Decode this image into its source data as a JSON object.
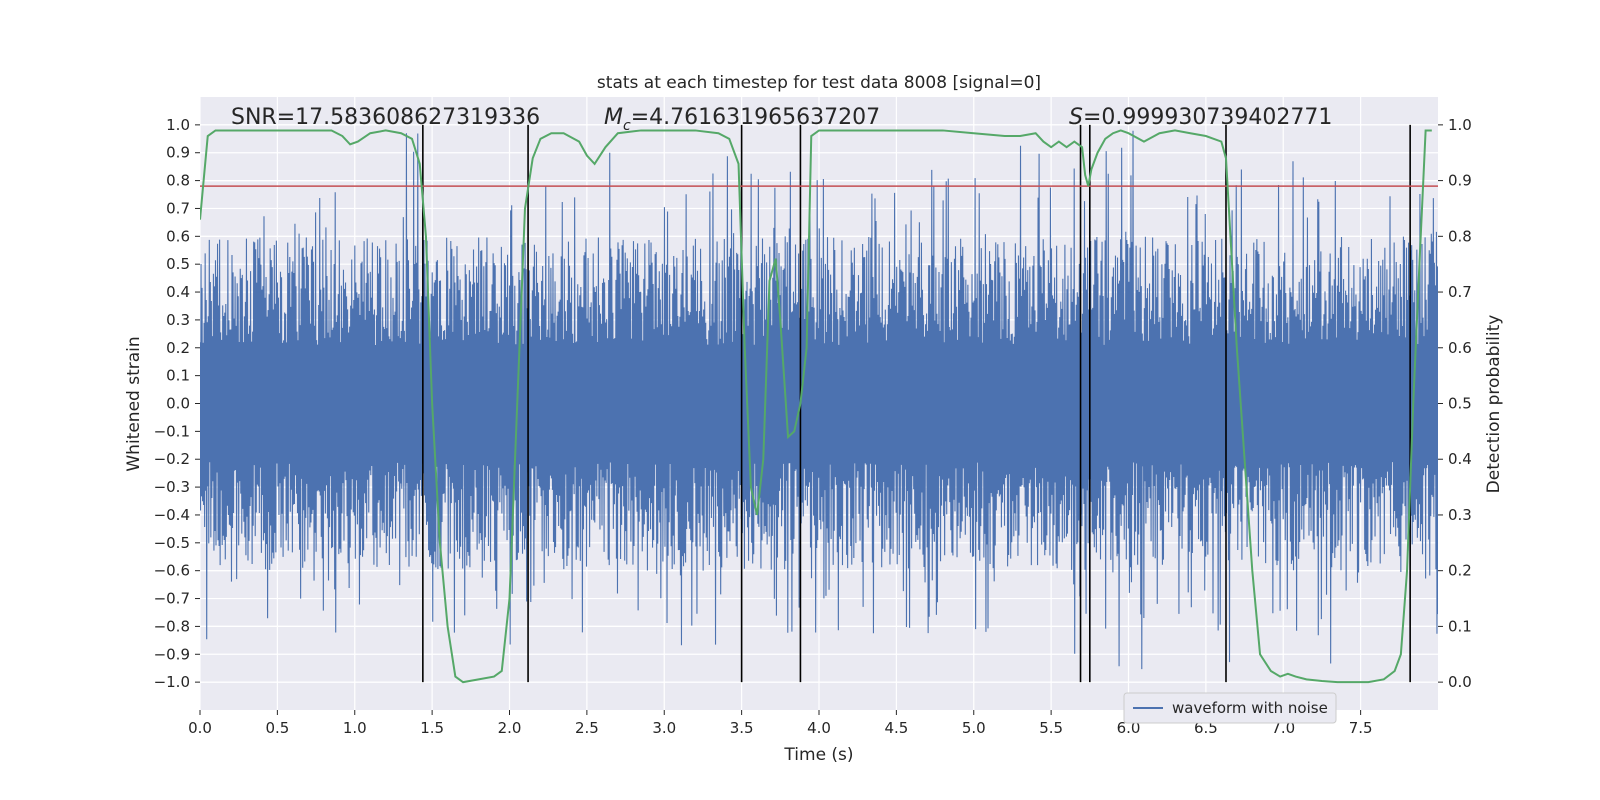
{
  "chart_data": {
    "type": "line",
    "title": "stats at each timestep for test data 8008 [signal=0]",
    "xlabel": "Time (s)",
    "ylabel": "Whitened strain",
    "y2label": "Detection probability",
    "xlim": [
      0,
      8
    ],
    "ylim": [
      -1.1,
      1.1
    ],
    "y2lim": [
      -0.05,
      1.05
    ],
    "xticks": [
      0.0,
      0.5,
      1.0,
      1.5,
      2.0,
      2.5,
      3.0,
      3.5,
      4.0,
      4.5,
      5.0,
      5.5,
      6.0,
      6.5,
      7.0,
      7.5
    ],
    "xtick_labels": [
      "0.0",
      "0.5",
      "1.0",
      "1.5",
      "2.0",
      "2.5",
      "3.0",
      "3.5",
      "4.0",
      "4.5",
      "5.0",
      "5.5",
      "6.0",
      "6.5",
      "7.0",
      "7.5"
    ],
    "yticks": [
      1.0,
      0.9,
      0.8,
      0.7,
      0.6,
      0.5,
      0.4,
      0.3,
      0.2,
      0.1,
      0.0,
      -0.1,
      -0.2,
      -0.3,
      -0.4,
      -0.5,
      -0.6,
      -0.7,
      -0.8,
      -0.9,
      -1.0
    ],
    "ytick_labels": [
      "1.0",
      "0.9",
      "0.8",
      "0.7",
      "0.6",
      "0.5",
      "0.4",
      "0.3",
      "0.2",
      "0.1",
      "0.0",
      "−0.1",
      "−0.2",
      "−0.3",
      "−0.4",
      "−0.5",
      "−0.6",
      "−0.7",
      "−0.8",
      "−0.9",
      "−1.0"
    ],
    "y2ticks": [
      1.0,
      0.9,
      0.8,
      0.7,
      0.6,
      0.5,
      0.4,
      0.3,
      0.2,
      0.1,
      0.0
    ],
    "y2tick_labels": [
      "1.0",
      "0.9",
      "0.8",
      "0.7",
      "0.6",
      "0.5",
      "0.4",
      "0.3",
      "0.2",
      "0.1",
      "0.0"
    ],
    "grid": true,
    "legend_position": "bottom-right",
    "annotations": {
      "snr": "SNR=17.583608627319336",
      "mc_symbol": "M",
      "mc_subscript": "c",
      "mc_value": "=4.761631965637207",
      "s_symbol": "S",
      "s_value": "=0.999930739402771"
    },
    "waveform": {
      "name": "waveform with noise",
      "color": "#4c72b0",
      "typical_amplitude": 0.6,
      "peak_max": 0.98,
      "peak_min": -1.0
    },
    "threshold": {
      "value": 0.78,
      "color": "#c44e52"
    },
    "detection_probability": {
      "color": "#55a868",
      "x": [
        0.0,
        0.05,
        0.1,
        0.15,
        0.3,
        0.5,
        0.7,
        0.85,
        0.92,
        0.97,
        1.02,
        1.1,
        1.2,
        1.3,
        1.37,
        1.42,
        1.46,
        1.5,
        1.55,
        1.6,
        1.65,
        1.7,
        1.8,
        1.9,
        1.95,
        2.0,
        2.05,
        2.1,
        2.15,
        2.2,
        2.27,
        2.35,
        2.45,
        2.5,
        2.55,
        2.62,
        2.7,
        2.85,
        3.0,
        3.2,
        3.35,
        3.42,
        3.48,
        3.52,
        3.56,
        3.6,
        3.64,
        3.68,
        3.72,
        3.75,
        3.8,
        3.84,
        3.88,
        3.92,
        3.95,
        4.0,
        4.2,
        4.5,
        4.8,
        5.0,
        5.2,
        5.3,
        5.4,
        5.45,
        5.5,
        5.55,
        5.6,
        5.65,
        5.7,
        5.72,
        5.74,
        5.76,
        5.8,
        5.85,
        5.9,
        5.95,
        6.0,
        6.1,
        6.2,
        6.3,
        6.4,
        6.5,
        6.55,
        6.6,
        6.63,
        6.7,
        6.75,
        6.8,
        6.85,
        6.92,
        6.98,
        7.03,
        7.08,
        7.15,
        7.25,
        7.35,
        7.45,
        7.55,
        7.65,
        7.72,
        7.76,
        7.8,
        7.84,
        7.88,
        7.92,
        7.96
      ],
      "y": [
        0.83,
        0.98,
        0.99,
        0.99,
        0.99,
        0.99,
        0.99,
        0.99,
        0.98,
        0.965,
        0.97,
        0.985,
        0.99,
        0.985,
        0.975,
        0.93,
        0.8,
        0.5,
        0.25,
        0.1,
        0.01,
        0.0,
        0.005,
        0.01,
        0.02,
        0.15,
        0.5,
        0.85,
        0.94,
        0.975,
        0.985,
        0.985,
        0.97,
        0.945,
        0.93,
        0.96,
        0.985,
        0.99,
        0.99,
        0.99,
        0.985,
        0.975,
        0.93,
        0.6,
        0.35,
        0.3,
        0.4,
        0.72,
        0.76,
        0.65,
        0.44,
        0.45,
        0.5,
        0.6,
        0.98,
        0.99,
        0.99,
        0.99,
        0.99,
        0.985,
        0.98,
        0.98,
        0.985,
        0.97,
        0.96,
        0.97,
        0.96,
        0.97,
        0.96,
        0.91,
        0.89,
        0.92,
        0.95,
        0.975,
        0.985,
        0.99,
        0.985,
        0.97,
        0.985,
        0.99,
        0.985,
        0.98,
        0.975,
        0.97,
        0.94,
        0.6,
        0.4,
        0.2,
        0.05,
        0.02,
        0.01,
        0.015,
        0.01,
        0.005,
        0.002,
        0.0,
        0.0,
        0.0,
        0.005,
        0.02,
        0.05,
        0.2,
        0.5,
        0.75,
        0.99,
        0.99
      ]
    },
    "vertical_markers": {
      "color": "#000000",
      "x": [
        1.44,
        2.12,
        3.5,
        3.88,
        5.69,
        5.75,
        6.63,
        7.82
      ]
    }
  }
}
